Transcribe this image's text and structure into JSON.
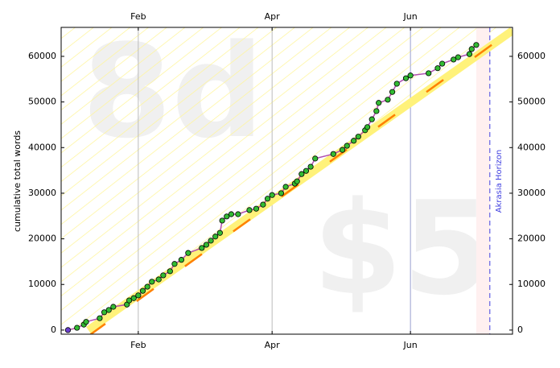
{
  "chart_data": {
    "type": "scatter",
    "x": [
      0,
      4,
      7,
      8,
      14,
      16,
      18,
      20,
      26,
      27,
      29,
      31,
      33,
      35,
      37,
      40,
      42,
      45,
      47,
      50,
      53,
      59,
      61,
      63,
      65,
      67,
      68,
      70,
      72,
      75,
      80,
      83,
      86,
      88,
      90,
      94,
      96,
      100,
      101,
      103,
      105,
      107,
      109,
      117,
      121,
      123,
      126,
      128,
      131,
      132,
      134,
      136,
      137,
      141,
      143,
      145,
      149,
      151,
      159,
      163,
      165,
      170,
      172,
      177,
      178,
      180
    ],
    "values": [
      0,
      500,
      1200,
      1800,
      2600,
      3900,
      4400,
      5100,
      5600,
      6500,
      7000,
      7600,
      8600,
      9500,
      10600,
      11100,
      12000,
      12900,
      14500,
      15400,
      16900,
      18000,
      18700,
      19600,
      20500,
      21300,
      24000,
      24900,
      25400,
      25400,
      26300,
      26600,
      27500,
      28800,
      29600,
      30000,
      31400,
      32100,
      32600,
      34200,
      34900,
      35800,
      37600,
      38600,
      39500,
      40400,
      41500,
      42400,
      43800,
      44500,
      46200,
      48000,
      49800,
      50500,
      52200,
      54000,
      55200,
      55800,
      56300,
      57400,
      58400,
      59300,
      59800,
      60500,
      61600,
      62500
    ],
    "color": "#33bb33",
    "start_color": "#6a3fd0",
    "line_color": "#b04fb0",
    "road": {
      "x": [
        9,
        196
      ],
      "values": [
        0,
        65650
      ],
      "color": "#fff27a"
    },
    "razor": {
      "x": [
        9,
        196
      ],
      "values": [
        -1300,
        65800
      ],
      "color": "#ff8000"
    },
    "today": 180,
    "horizon": 186,
    "horizon_label": "Akrasia Horizon",
    "watermark_days": "8d",
    "watermark_pledge": "$5",
    "y_label": "cumulative total words",
    "xlim": [
      -3,
      196
    ],
    "ylim": [
      -900,
      66350
    ],
    "xticks": [
      {
        "value": 31,
        "label": "Feb"
      },
      {
        "value": 90,
        "label": "Apr"
      },
      {
        "value": 151,
        "label": "Jun"
      }
    ],
    "yticks": [
      0,
      10000,
      20000,
      30000,
      40000,
      50000,
      60000
    ],
    "grid": true
  }
}
